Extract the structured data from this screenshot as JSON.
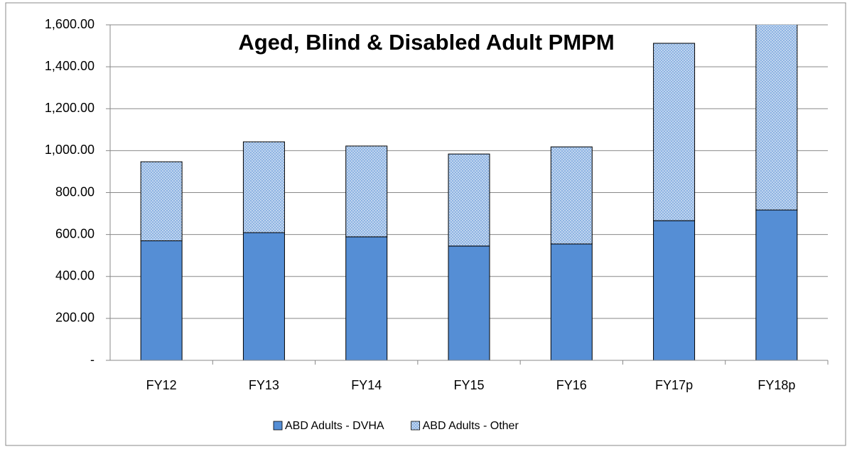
{
  "chart_data": {
    "type": "stacked_bar",
    "title": "Aged, Blind & Disabled Adult PMPM",
    "categories": [
      "FY12",
      "FY13",
      "FY14",
      "FY15",
      "FY16",
      "FY17p",
      "FY18p"
    ],
    "series": [
      {
        "name": "ABD Adults - DVHA",
        "color": "#558ed5",
        "values": [
          570,
          609,
          589,
          545,
          555,
          666,
          717
        ]
      },
      {
        "name": "ABD Adults - Other",
        "color": "#8db3e2",
        "values": [
          377,
          433,
          433,
          439,
          463,
          846,
          900
        ]
      }
    ],
    "ylim": [
      0,
      1600
    ],
    "yticks": [
      {
        "value": 0,
        "label": "-"
      },
      {
        "value": 200,
        "label": "200.00"
      },
      {
        "value": 400,
        "label": "400.00"
      },
      {
        "value": 600,
        "label": "600.00"
      },
      {
        "value": 800,
        "label": "800.00"
      },
      {
        "value": 1000,
        "label": "1,000.00"
      },
      {
        "value": 1200,
        "label": "1,200.00"
      },
      {
        "value": 1400,
        "label": "1,400.00"
      },
      {
        "value": 1600,
        "label": "1,600.00"
      }
    ],
    "grid": true,
    "legend": "bottom"
  }
}
